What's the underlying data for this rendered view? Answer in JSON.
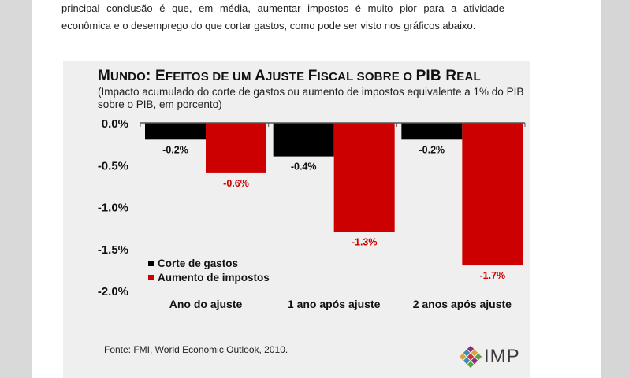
{
  "article": {
    "line1": "principal conclusão é que, em média, aumentar impostos é muito pior para a atividade",
    "line2": "econômica e o desemprego do que cortar gastos, como pode ser visto nos gráficos abaixo."
  },
  "chart": {
    "title_parts": [
      "M",
      "UNDO",
      ": E",
      "FEITOS DE UM ",
      "A",
      "JUSTE ",
      "F",
      "ISCAL SOBRE O ",
      "PIB R",
      "EAL"
    ],
    "subtitle": "(Impacto acumulado do corte de gastos ou aumento de impostos equivalente a 1% do PIB sobre o PIB, em porcento)",
    "source": "Fonte: FMI, World Economic Outlook, 2010.",
    "logo_text": "IMP"
  },
  "chart_data": {
    "type": "bar",
    "title": "MUNDO: EFEITOS DE UM AJUSTE FISCAL SOBRE O PIB REAL",
    "categories": [
      "Ano do ajuste",
      "1 ano após ajuste",
      "2 anos após ajuste"
    ],
    "series": [
      {
        "name": "Corte de gastos",
        "values": [
          -0.2,
          -0.4,
          -0.2
        ],
        "labels": [
          "-0.2%",
          "-0.4%",
          "-0.2%"
        ],
        "color": "#000000"
      },
      {
        "name": "Aumento de impostos",
        "values": [
          -0.6,
          -1.3,
          -1.7
        ],
        "labels": [
          "-0.6%",
          "-1.3%",
          "-1.7%"
        ],
        "color": "#cc0000"
      }
    ],
    "yticks": [
      0.0,
      -0.5,
      -1.0,
      -1.5,
      -2.0
    ],
    "ytick_labels": [
      "0.0%",
      "-0.5%",
      "-1.0%",
      "-1.5%",
      "-2.0%"
    ],
    "ylim": [
      -2.0,
      0.0
    ],
    "grid": false,
    "legend": "bottom-left"
  }
}
